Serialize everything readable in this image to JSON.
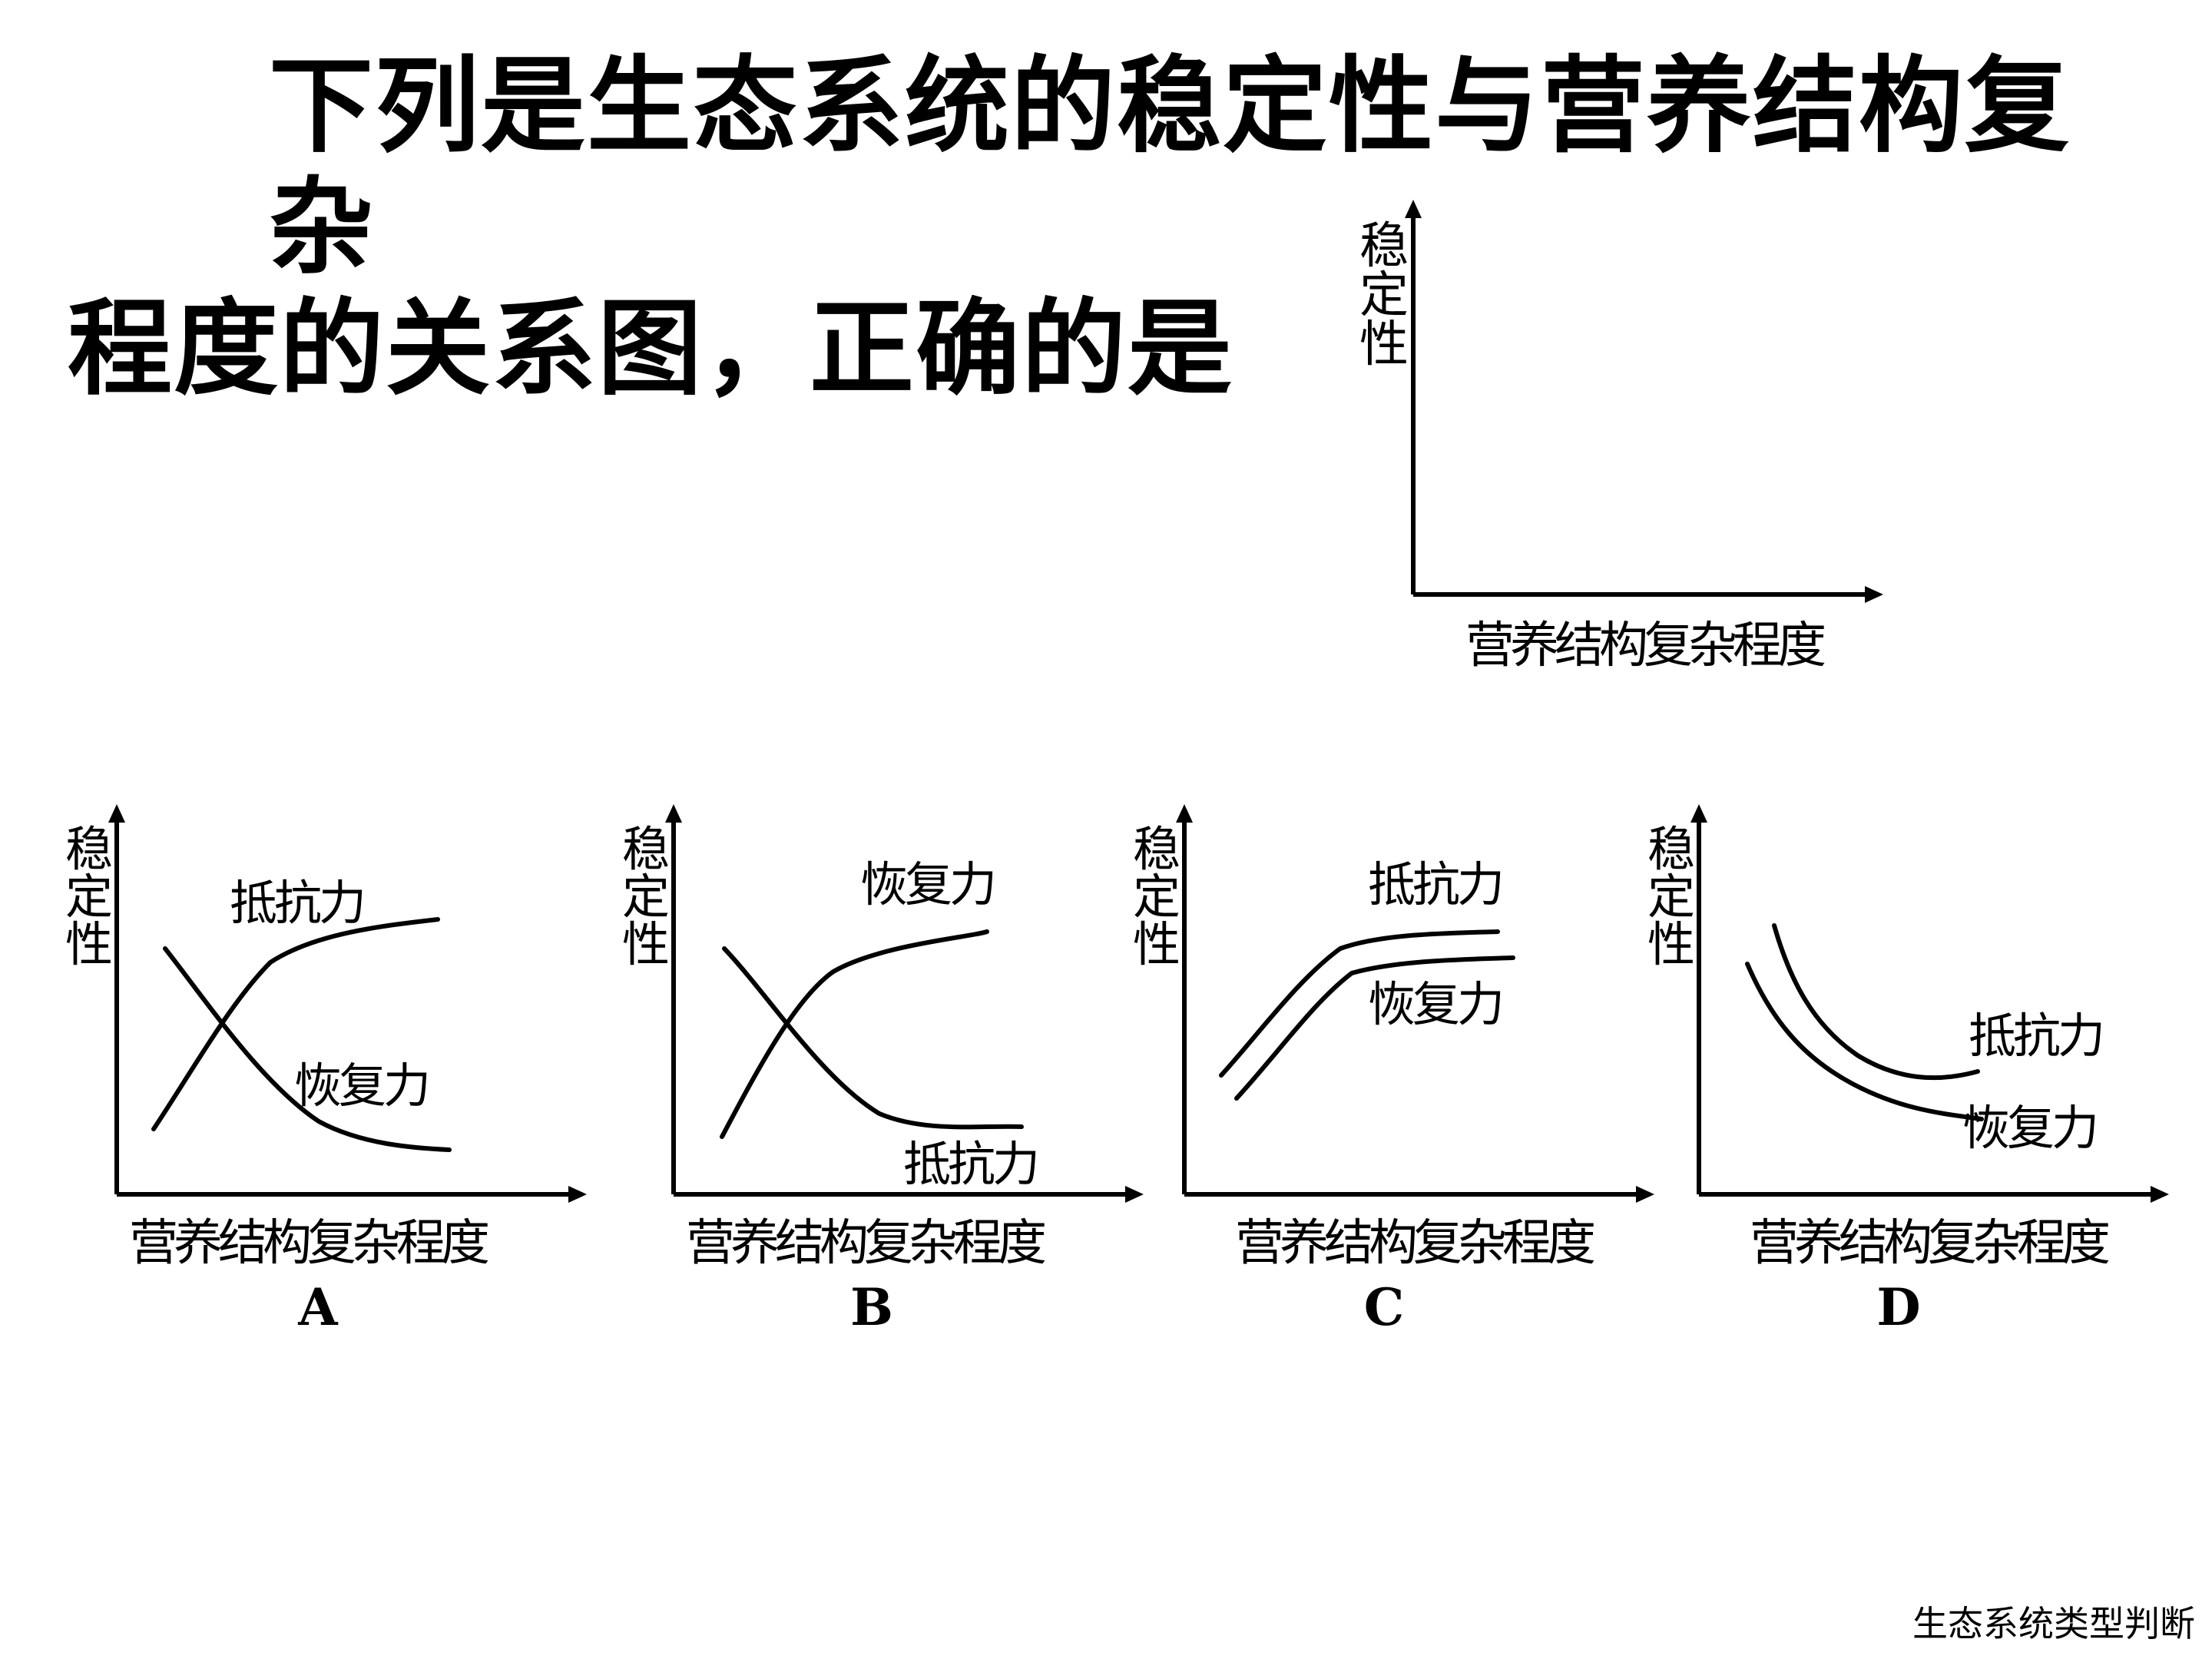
{
  "title": {
    "line1": "下列是生态系统的稳定性与营养结构复杂",
    "line2": "程度的关系图，正确的是"
  },
  "axes": {
    "y_label": "稳定性",
    "x_label": "营养结构复杂程度"
  },
  "options": [
    {
      "letter": "A",
      "label_a": "抵抗力",
      "label_b": "恢复力"
    },
    {
      "letter": "B",
      "label_a": "恢复力",
      "label_b": "抵抗力"
    },
    {
      "letter": "C",
      "label_a": "抵抗力",
      "label_b": "恢复力"
    },
    {
      "letter": "D",
      "label_a": "抵抗力",
      "label_b": "恢复力"
    }
  ],
  "footer": "生态系统类型判断"
}
